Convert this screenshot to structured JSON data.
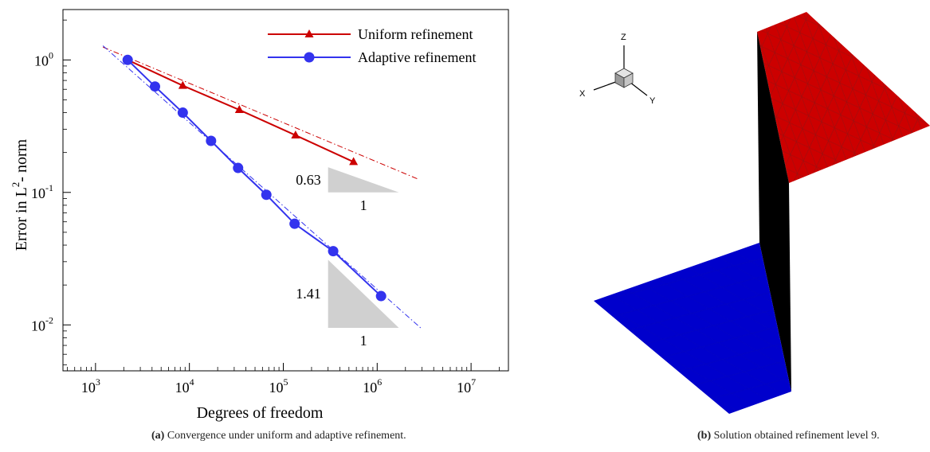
{
  "chart_data": [
    {
      "type": "line",
      "xscale": "log",
      "yscale": "log",
      "xlabel": "Degrees of freedom",
      "ylabel": "Error in L",
      "ylabel_sup": "2",
      "ylabel_suffix": "- norm",
      "xlim": [
        450,
        25000000
      ],
      "ylim": [
        0.0045,
        2.4
      ],
      "x_ticks": [
        {
          "base": "10",
          "exp": "3",
          "value": 1000
        },
        {
          "base": "10",
          "exp": "4",
          "value": 10000
        },
        {
          "base": "10",
          "exp": "5",
          "value": 100000
        },
        {
          "base": "10",
          "exp": "6",
          "value": 1000000
        },
        {
          "base": "10",
          "exp": "7",
          "value": 10000000
        }
      ],
      "y_ticks": [
        {
          "base": "10",
          "exp": "0",
          "value": 1
        },
        {
          "base": "10",
          "exp": "-1",
          "value": 0.1
        },
        {
          "base": "10",
          "exp": "-2",
          "value": 0.01
        }
      ],
      "legend_position": "top-right",
      "series": [
        {
          "name": "Uniform refinement",
          "color": "#cc0000",
          "marker": "triangle",
          "x": [
            2200,
            8500,
            34000,
            135000,
            560000
          ],
          "y": [
            1.0,
            0.64,
            0.42,
            0.27,
            0.17
          ]
        },
        {
          "name": "Adaptive refinement",
          "color": "#3333ee",
          "marker": "circle",
          "x": [
            2200,
            4300,
            8500,
            17000,
            33000,
            66000,
            132000,
            340000,
            1100000
          ],
          "y": [
            1.0,
            0.63,
            0.4,
            0.245,
            0.153,
            0.096,
            0.058,
            0.036,
            0.0165
          ]
        }
      ],
      "fit_lines": [
        {
          "color": "#cc0000",
          "x": [
            1200,
            2800000
          ],
          "y": [
            1.25,
            0.125
          ]
        },
        {
          "color": "#3333ee",
          "x": [
            1200,
            3000000
          ],
          "y": [
            1.28,
            0.0093
          ]
        }
      ],
      "slope_triangles": [
        {
          "slope_label": "0.63",
          "run_label": "1",
          "x": [
            300000,
            1700000
          ],
          "y_top": 0.155,
          "y_bottom": 0.1
        },
        {
          "slope_label": "1.41",
          "run_label": "1",
          "x": [
            300000,
            1700000
          ],
          "y_top": 0.031,
          "y_bottom": 0.0095
        }
      ]
    }
  ],
  "axes_3d": {
    "x": "X",
    "y": "Y",
    "z": "Z"
  },
  "surface_colors": {
    "top": "#cc0000",
    "wall": "#000000",
    "bottom": "#0000cc"
  },
  "captions": {
    "a_label": "(a)",
    "a_text": "Convergence under uniform and adaptive refinement.",
    "b_label": "(b)",
    "b_text": "Solution obtained refinement level 9."
  }
}
